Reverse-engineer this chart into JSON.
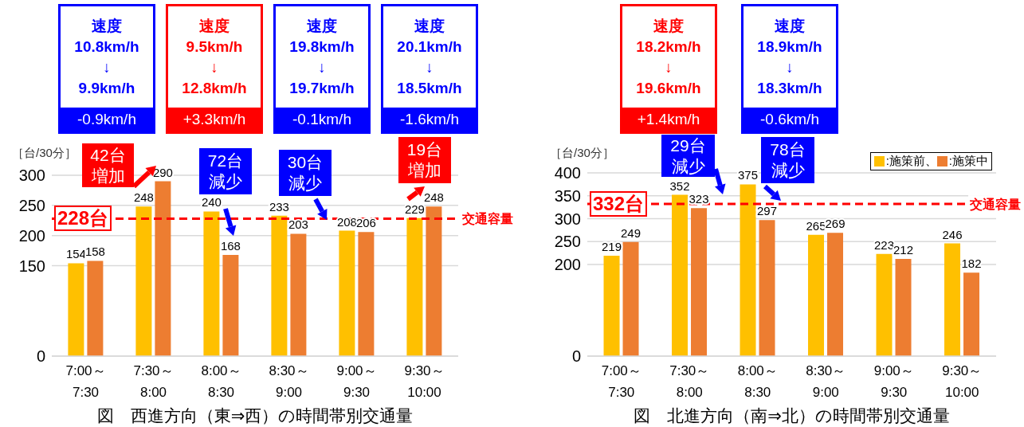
{
  "chart_data": [
    {
      "type": "bar",
      "title": "図　西進方向（東⇒西）の時間帯別交通量",
      "ylabel": "［台/30分］",
      "categories": [
        "7:00～\n7:30",
        "7:30～\n8:00",
        "8:00～\n8:30",
        "8:30～\n9:00",
        "9:00～\n9:30",
        "9:30～\n10:00"
      ],
      "series": [
        {
          "color": "#ffc000",
          "values": [
            154,
            248,
            240,
            233,
            208,
            229
          ]
        },
        {
          "color": "#ed7d31",
          "values": [
            158,
            290,
            168,
            203,
            206,
            248
          ]
        }
      ],
      "ylim": [
        0,
        300
      ],
      "yticks": [
        0,
        150,
        200,
        250,
        300
      ],
      "grid": "y",
      "legend": false,
      "data_labels": true,
      "ref_lines": [
        {
          "axis": "y",
          "value": 228,
          "label": "交通容量",
          "color": "#ff0000",
          "line_style": "dashed"
        }
      ],
      "annotations": [
        "速度\n10.8km/h\n↓\n9.9km/h\n-0.9km/h",
        "速度\n9.5km/h\n↓\n12.8km/h\n+3.3km/h",
        "速度\n19.8km/h\n↓\n19.7km/h\n-0.1km/h",
        "速度\n20.1km/h\n↓\n18.5km/h\n-1.6km/h",
        "42台増加",
        "72台減少",
        "30台減少",
        "19台増加",
        "228台"
      ]
    },
    {
      "type": "bar",
      "title": "図　北進方向（南⇒北）の時間帯別交通量",
      "ylabel": "［台/30分］",
      "categories": [
        "7:00～\n7:30",
        "7:30～\n8:00",
        "8:00～\n8:30",
        "8:30～\n9:00",
        "9:00～\n9:30",
        "9:30～\n10:00"
      ],
      "series": [
        {
          "name": ":施策前、",
          "color": "#ffc000",
          "values": [
            219,
            352,
            375,
            265,
            223,
            246
          ]
        },
        {
          "name": ":施策中",
          "color": "#ed7d31",
          "values": [
            249,
            323,
            297,
            269,
            212,
            182
          ]
        }
      ],
      "ylim": [
        0,
        400
      ],
      "yticks": [
        0,
        200,
        250,
        300,
        350,
        400
      ],
      "grid": "y",
      "legend": "top right",
      "data_labels": true,
      "ref_lines": [
        {
          "axis": "y",
          "value": 332,
          "label": "交通容量",
          "color": "#ff0000",
          "line_style": "dashed"
        }
      ],
      "annotations": [
        "速度\n18.2km/h\n↓\n19.6km/h\n+1.4km/h",
        "速度\n18.9km/h\n↓\n18.3km/h\n-0.6km/h",
        "29台減少",
        "78台減少",
        "332台"
      ]
    }
  ]
}
